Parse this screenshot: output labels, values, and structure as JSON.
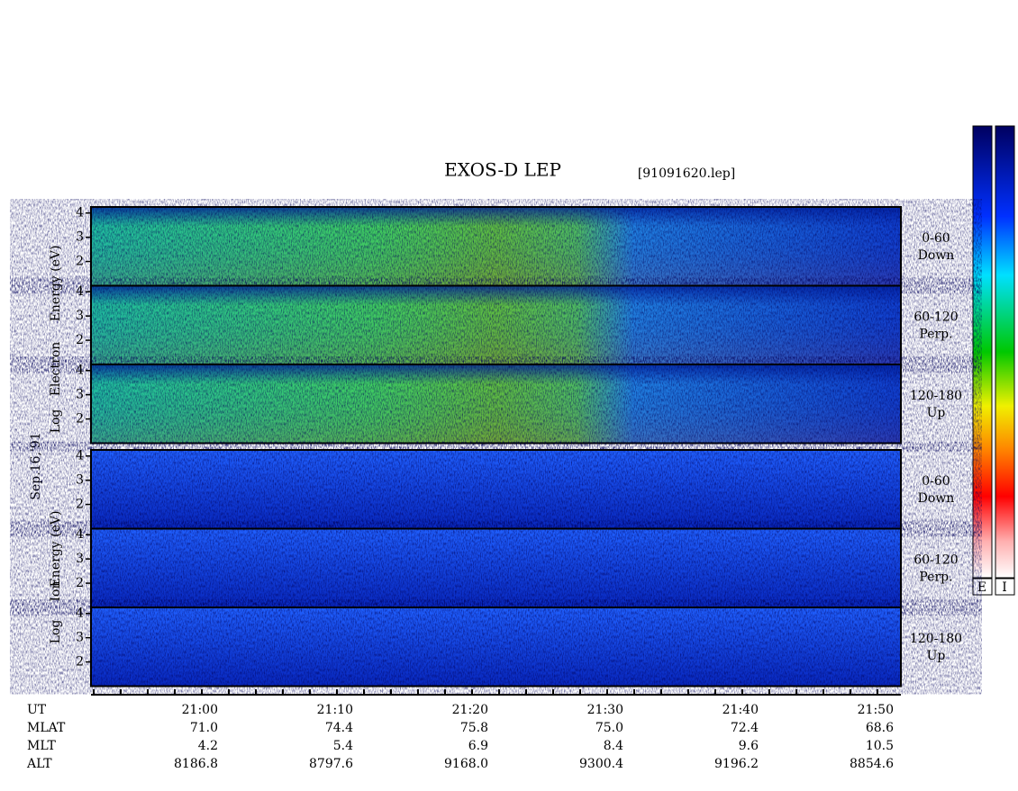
{
  "title": "EXOS-D LEP",
  "file": "[91091620.lep]",
  "date": "Sep.16,'91",
  "electron": {
    "ylabel": [
      "Log",
      "Electron",
      "Energy (eV)"
    ],
    "ylim": [
      1,
      4.25
    ],
    "yticks": [
      2,
      3,
      4
    ],
    "channels": [
      [
        "0-60",
        "Down"
      ],
      [
        "60-120",
        "Perp."
      ],
      [
        "120-180",
        "Up"
      ]
    ]
  },
  "ion": {
    "ylabel": [
      "Log",
      "Ion",
      "Energy (eV)"
    ],
    "ylim": [
      1,
      4.25
    ],
    "yticks": [
      2,
      3,
      4
    ],
    "channels": [
      [
        "0-60",
        "Down"
      ],
      [
        "60-120",
        "Perp."
      ],
      [
        "120-180",
        "Up"
      ]
    ]
  },
  "colorbar": {
    "labels": [
      "E",
      "I"
    ]
  },
  "xaxis": {
    "rows": [
      {
        "name": "UT",
        "values": [
          "21:00",
          "21:10",
          "21:20",
          "21:30",
          "21:40",
          "21:50"
        ]
      },
      {
        "name": "MLAT",
        "values": [
          "71.0",
          "74.4",
          "75.8",
          "75.0",
          "72.4",
          "68.6"
        ]
      },
      {
        "name": "MLT",
        "values": [
          "4.2",
          "5.4",
          "6.9",
          "8.4",
          "9.6",
          "10.5"
        ]
      },
      {
        "name": "ALT",
        "values": [
          "8186.8",
          "8797.6",
          "9168.0",
          "9300.4",
          "9196.2",
          "8854.6"
        ]
      }
    ]
  }
}
